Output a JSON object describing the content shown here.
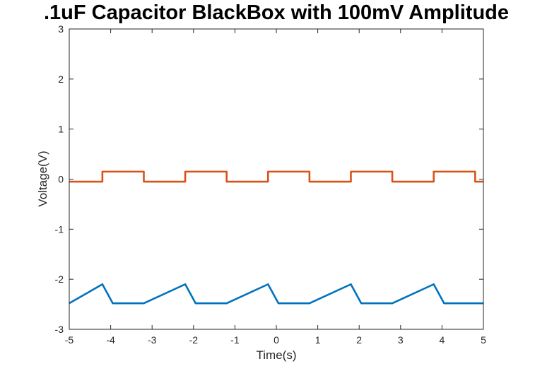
{
  "chart_data": {
    "type": "line",
    "title": ".1uF Capacitor BlackBox with 100mV Amplitude",
    "xlabel": "Time(s)",
    "ylabel": "Voltage(V)",
    "xlim": [
      -5,
      5
    ],
    "ylim": [
      -3,
      3
    ],
    "xticks": [
      -5,
      -4,
      -3,
      -2,
      -1,
      0,
      1,
      2,
      3,
      4,
      5
    ],
    "yticks": [
      -3,
      -2,
      -1,
      0,
      1,
      2,
      3
    ],
    "grid": false,
    "box": true,
    "series": [
      {
        "color": "#D95319",
        "x": [
          -5,
          -4.2,
          -4.2,
          -3.2,
          -3.2,
          -2.2,
          -2.2,
          -1.2,
          -1.2,
          -0.2,
          -0.2,
          0.8,
          0.8,
          1.8,
          1.8,
          2.8,
          2.8,
          3.8,
          3.8,
          4.8,
          4.8,
          5
        ],
        "y": [
          -0.05,
          -0.05,
          0.15,
          0.15,
          -0.05,
          -0.05,
          0.15,
          0.15,
          -0.05,
          -0.05,
          0.15,
          0.15,
          -0.05,
          -0.05,
          0.15,
          0.15,
          -0.05,
          -0.05,
          0.15,
          0.15,
          -0.05,
          -0.05
        ]
      },
      {
        "color": "#0072BD",
        "x": [
          -5,
          -4.2,
          -3.95,
          -3.2,
          -2.2,
          -1.95,
          -1.2,
          -0.2,
          0.05,
          0.8,
          1.8,
          2.05,
          2.8,
          3.8,
          4.05,
          5
        ],
        "y": [
          -2.48,
          -2.1,
          -2.48,
          -2.48,
          -2.1,
          -2.48,
          -2.48,
          -2.1,
          -2.48,
          -2.48,
          -2.1,
          -2.48,
          -2.48,
          -2.1,
          -2.48,
          -2.48
        ]
      }
    ]
  }
}
